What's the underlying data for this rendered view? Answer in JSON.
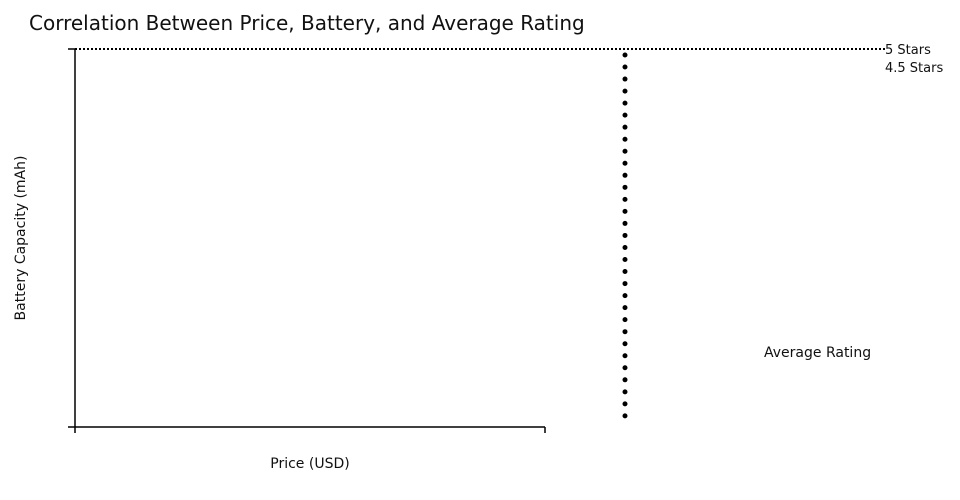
{
  "chart_data": {
    "type": "scatter",
    "title": "Correlation Between Price, Battery, and Average Rating",
    "xlabel": "Price (USD)",
    "ylabel": "Battery Capacity (mAh)",
    "size_legend": {
      "title": "Average Rating",
      "labels": [
        "4.5 Stars",
        "5 Stars"
      ]
    },
    "series": [],
    "grid": false,
    "colors": {
      "axis": "#000000",
      "text": "#111111"
    }
  }
}
